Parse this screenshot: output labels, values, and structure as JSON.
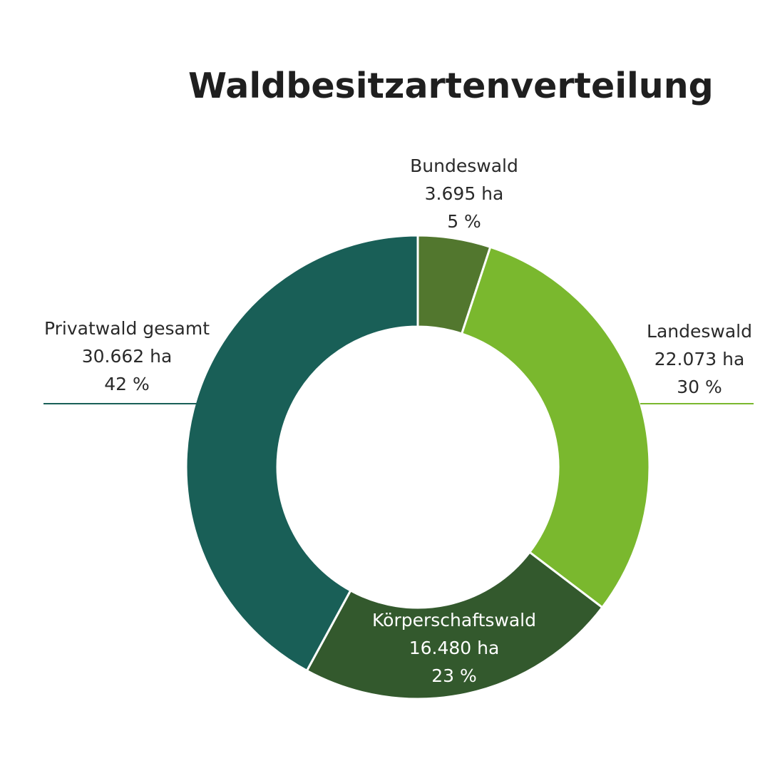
{
  "chart_data": {
    "type": "pie",
    "variant": "donut",
    "title": "Waldbesitzartenverteilung",
    "unit": "ha",
    "slices": [
      {
        "name": "Bundeswald",
        "value": 3695,
        "value_label": "3.695 ha",
        "percent_label": "5 %",
        "color": "#52772e"
      },
      {
        "name": "Landeswald",
        "value": 22073,
        "value_label": "22.073 ha",
        "percent_label": "30 %",
        "color": "#7ab82e"
      },
      {
        "name": "Körperschaftswald",
        "value": 16480,
        "value_label": "16.480 ha",
        "percent_label": "23 %",
        "color": "#33592d"
      },
      {
        "name": "Privatwald gesamt",
        "value": 30662,
        "value_label": "30.662 ha",
        "percent_label": "42 %",
        "color": "#195f57"
      }
    ]
  }
}
